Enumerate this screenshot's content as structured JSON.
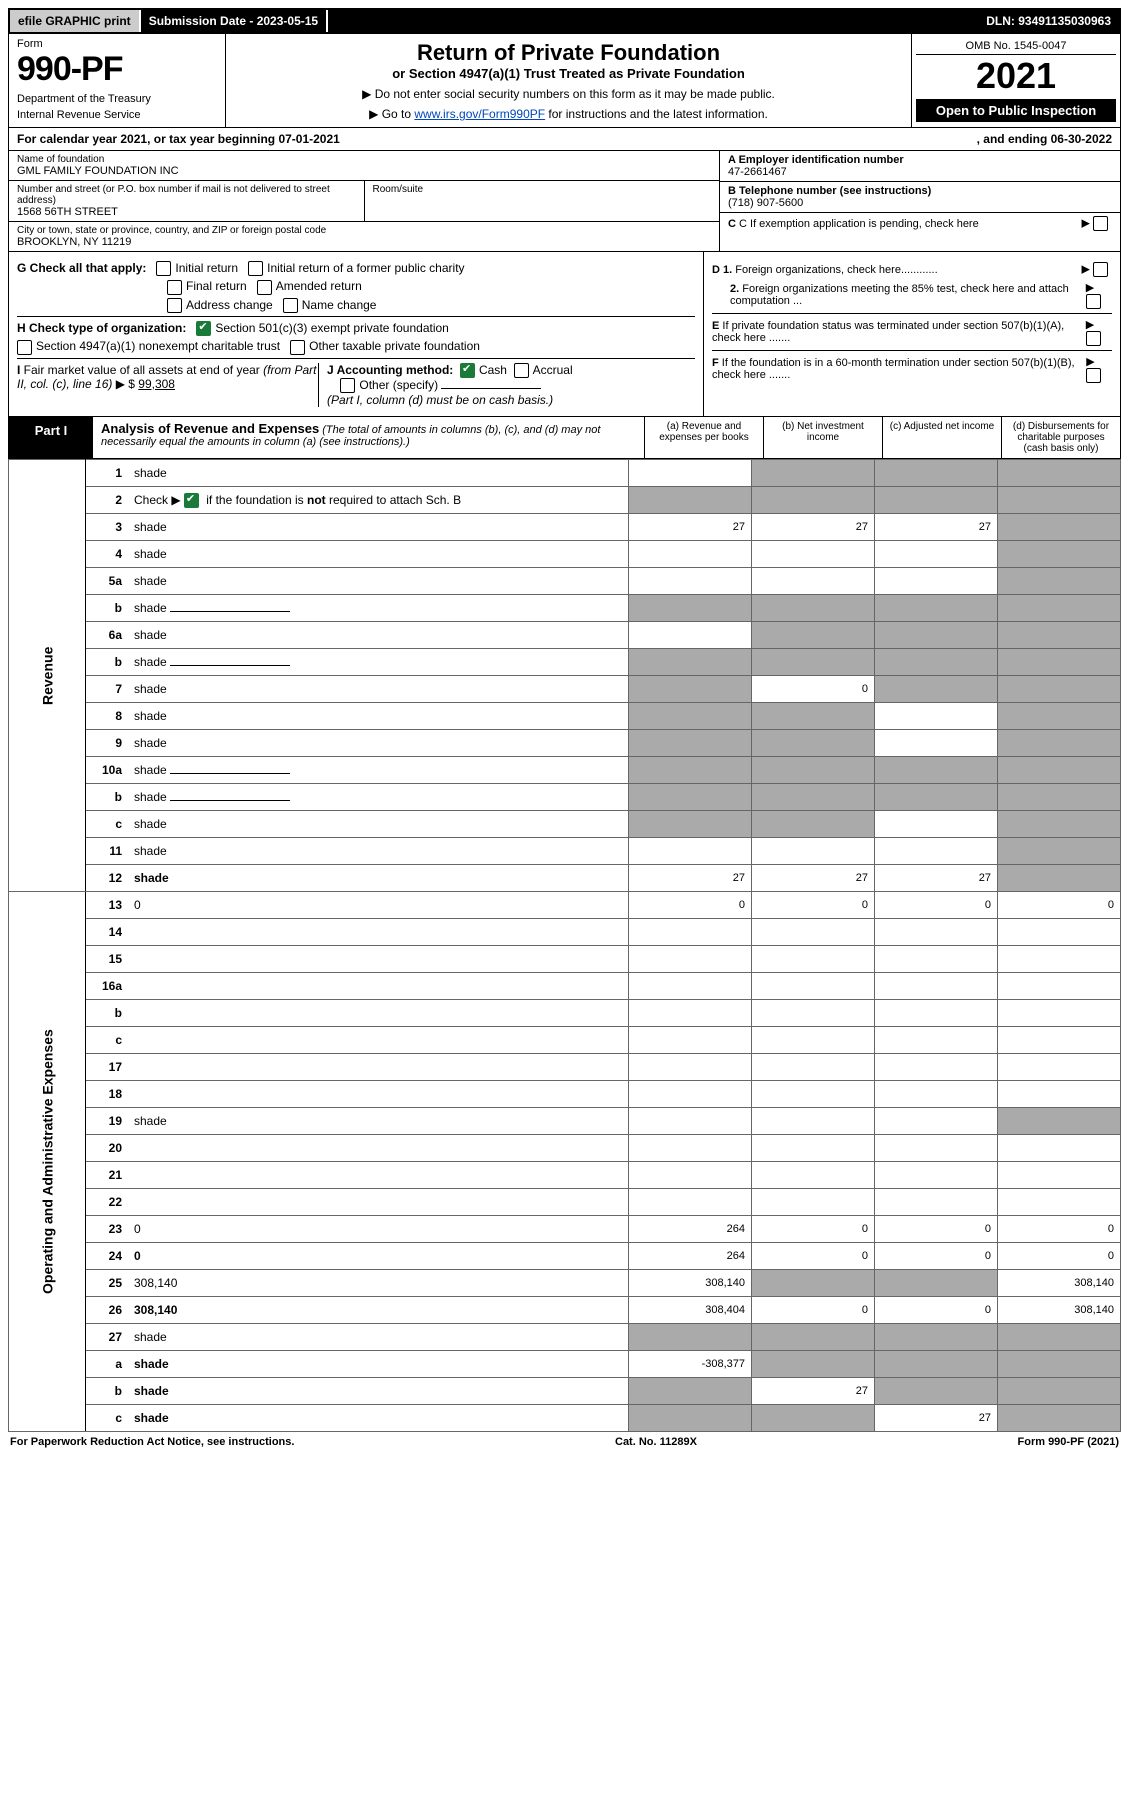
{
  "topbar": {
    "efile": "efile GRAPHIC print",
    "subdate_label": "Submission Date - 2023-05-15",
    "dln": "DLN: 93491135030963"
  },
  "header": {
    "form_label": "Form",
    "form_num": "990-PF",
    "dept": "Department of the Treasury",
    "irs": "Internal Revenue Service",
    "title": "Return of Private Foundation",
    "sub": "or Section 4947(a)(1) Trust Treated as Private Foundation",
    "inst1": "▶ Do not enter social security numbers on this form as it may be made public.",
    "inst2_pre": "▶ Go to ",
    "inst2_link": "www.irs.gov/Form990PF",
    "inst2_post": " for instructions and the latest information.",
    "omb": "OMB No. 1545-0047",
    "year": "2021",
    "open_pub": "Open to Public Inspection"
  },
  "calyear": {
    "left": "For calendar year 2021, or tax year beginning 07-01-2021",
    "right": ", and ending 06-30-2022"
  },
  "info": {
    "name_label": "Name of foundation",
    "name": "GML FAMILY FOUNDATION INC",
    "addr_label": "Number and street (or P.O. box number if mail is not delivered to street address)",
    "addr": "1568 56TH STREET",
    "room_label": "Room/suite",
    "city_label": "City or town, state or province, country, and ZIP or foreign postal code",
    "city": "BROOKLYN, NY  11219",
    "a_label": "A Employer identification number",
    "a_val": "47-2661467",
    "b_label": "B Telephone number (see instructions)",
    "b_val": "(718) 907-5600",
    "c_label": "C If exemption application is pending, check here",
    "d1_label": "D 1. Foreign organizations, check here............",
    "d2_label": "2. Foreign organizations meeting the 85% test, check here and attach computation ...",
    "e_label": "E If private foundation status was terminated under section 507(b)(1)(A), check here .......",
    "f_label": "F If the foundation is in a 60-month termination under section 507(b)(1)(B), check here ......."
  },
  "g": {
    "label": "G Check all that apply:",
    "opts": [
      "Initial return",
      "Initial return of a former public charity",
      "Final return",
      "Amended return",
      "Address change",
      "Name change"
    ]
  },
  "h": {
    "label": "H Check type of organization:",
    "opt1": "Section 501(c)(3) exempt private foundation",
    "opt2": "Section 4947(a)(1) nonexempt charitable trust",
    "opt3": "Other taxable private foundation"
  },
  "i": {
    "label": "I Fair market value of all assets at end of year (from Part II, col. (c), line 16) ▶ $",
    "val": "99,308"
  },
  "j": {
    "label": "J Accounting method:",
    "cash": "Cash",
    "accrual": "Accrual",
    "other": "Other (specify)",
    "note": "(Part I, column (d) must be on cash basis.)"
  },
  "part1": {
    "label": "Part I",
    "title": "Analysis of Revenue and Expenses",
    "subtitle": " (The total of amounts in columns (b), (c), and (d) may not necessarily equal the amounts in column (a) (see instructions).)",
    "col_a": "(a) Revenue and expenses per books",
    "col_b": "(b) Net investment income",
    "col_c": "(c) Adjusted net income",
    "col_d": "(d) Disbursements for charitable purposes (cash basis only)"
  },
  "sections": {
    "revenue": "Revenue",
    "expenses": "Operating and Administrative Expenses"
  },
  "rows": [
    {
      "n": "1",
      "d": "shade",
      "a": "",
      "b": "shade",
      "c": "shade"
    },
    {
      "n": "2",
      "d": "shade",
      "a": "shade",
      "b": "shade",
      "c": "shade",
      "checked": true
    },
    {
      "n": "3",
      "d": "shade",
      "a": "27",
      "b": "27",
      "c": "27"
    },
    {
      "n": "4",
      "d": "shade",
      "a": "",
      "b": "",
      "c": ""
    },
    {
      "n": "5a",
      "d": "shade",
      "a": "",
      "b": "",
      "c": ""
    },
    {
      "n": "b",
      "d": "shade",
      "a": "shade",
      "b": "shade",
      "c": "shade",
      "blank": true
    },
    {
      "n": "6a",
      "d": "shade",
      "a": "",
      "b": "shade",
      "c": "shade"
    },
    {
      "n": "b",
      "d": "shade",
      "a": "shade",
      "b": "shade",
      "c": "shade",
      "blank": true
    },
    {
      "n": "7",
      "d": "shade",
      "a": "shade",
      "b": "0",
      "c": "shade"
    },
    {
      "n": "8",
      "d": "shade",
      "a": "shade",
      "b": "shade",
      "c": ""
    },
    {
      "n": "9",
      "d": "shade",
      "a": "shade",
      "b": "shade",
      "c": ""
    },
    {
      "n": "10a",
      "d": "shade",
      "a": "shade",
      "b": "shade",
      "c": "shade",
      "blank": true
    },
    {
      "n": "b",
      "d": "shade",
      "a": "shade",
      "b": "shade",
      "c": "shade",
      "blank": true
    },
    {
      "n": "c",
      "d": "shade",
      "a": "shade",
      "b": "shade",
      "c": ""
    },
    {
      "n": "11",
      "d": "shade",
      "a": "",
      "b": "",
      "c": ""
    },
    {
      "n": "12",
      "d": "shade",
      "a": "27",
      "b": "27",
      "c": "27",
      "bold": true
    }
  ],
  "exp_rows": [
    {
      "n": "13",
      "d": "0",
      "a": "0",
      "b": "0",
      "c": "0"
    },
    {
      "n": "14",
      "d": "",
      "a": "",
      "b": "",
      "c": ""
    },
    {
      "n": "15",
      "d": "",
      "a": "",
      "b": "",
      "c": ""
    },
    {
      "n": "16a",
      "d": "",
      "a": "",
      "b": "",
      "c": ""
    },
    {
      "n": "b",
      "d": "",
      "a": "",
      "b": "",
      "c": ""
    },
    {
      "n": "c",
      "d": "",
      "a": "",
      "b": "",
      "c": ""
    },
    {
      "n": "17",
      "d": "",
      "a": "",
      "b": "",
      "c": ""
    },
    {
      "n": "18",
      "d": "",
      "a": "",
      "b": "",
      "c": ""
    },
    {
      "n": "19",
      "d": "shade",
      "a": "",
      "b": "",
      "c": ""
    },
    {
      "n": "20",
      "d": "",
      "a": "",
      "b": "",
      "c": ""
    },
    {
      "n": "21",
      "d": "",
      "a": "",
      "b": "",
      "c": ""
    },
    {
      "n": "22",
      "d": "",
      "a": "",
      "b": "",
      "c": ""
    },
    {
      "n": "23",
      "d": "0",
      "a": "264",
      "b": "0",
      "c": "0"
    },
    {
      "n": "24",
      "d": "0",
      "a": "264",
      "b": "0",
      "c": "0",
      "bold": true
    },
    {
      "n": "25",
      "d": "308,140",
      "a": "308,140",
      "b": "shade",
      "c": "shade"
    },
    {
      "n": "26",
      "d": "308,140",
      "a": "308,404",
      "b": "0",
      "c": "0",
      "bold": true
    },
    {
      "n": "27",
      "d": "shade",
      "a": "shade",
      "b": "shade",
      "c": "shade"
    },
    {
      "n": "a",
      "d": "shade",
      "a": "-308,377",
      "b": "shade",
      "c": "shade",
      "bold": true
    },
    {
      "n": "b",
      "d": "shade",
      "a": "shade",
      "b": "27",
      "c": "shade",
      "bold": true
    },
    {
      "n": "c",
      "d": "shade",
      "a": "shade",
      "b": "shade",
      "c": "27",
      "bold": true
    }
  ],
  "footer": {
    "left": "For Paperwork Reduction Act Notice, see instructions.",
    "mid": "Cat. No. 11289X",
    "right": "Form 990-PF (2021)"
  }
}
